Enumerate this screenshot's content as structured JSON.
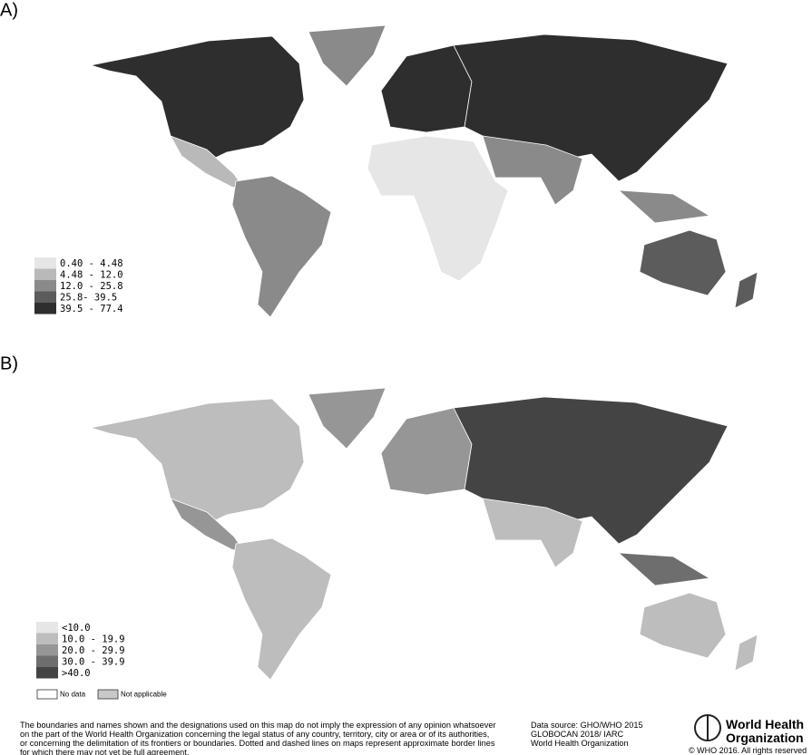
{
  "panels": [
    {
      "label": "A)",
      "legend": [
        {
          "label": "0.40 - 4.48",
          "color": "#e6e6e6"
        },
        {
          "label": "4.48 - 12.0",
          "color": "#b9b9b9"
        },
        {
          "label": "12.0 - 25.8",
          "color": "#8a8a8a"
        },
        {
          "label": "25.8- 39.5",
          "color": "#5c5c5c"
        },
        {
          "label": "39.5 - 77.4",
          "color": "#2e2e2e"
        }
      ]
    },
    {
      "label": "B)",
      "legend": [
        {
          "label": "<10.0",
          "color": "#e6e6e6"
        },
        {
          "label": "10.0 - 19.9",
          "color": "#bdbdbd"
        },
        {
          "label": "20.0 - 29.9",
          "color": "#969696"
        },
        {
          "label": "30.0 - 39.9",
          "color": "#6e6e6e"
        },
        {
          "label": ">40.0",
          "color": "#444444"
        }
      ],
      "extra_legend": [
        {
          "label": "No data",
          "color": "#ffffff"
        },
        {
          "label": "Not applicable",
          "color": "#c8c8c8"
        }
      ]
    }
  ],
  "footer": {
    "disclaimer": [
      "The boundaries and names shown and the designations used on this map do not imply the expression of any opinion whatsoever",
      "on the part of the World Health Organization concerning the legal status of any country, territory, city or area or of its authorities,",
      "or concerning the delimitation of its frontiers or boundaries. Dotted and dashed lines on maps represent approximate border lines",
      "for which there may not yet be full agreement."
    ],
    "source": [
      "Data source: GHO/WHO 2015",
      "GLOBOCAN 2018/ IARC",
      "World Health Organization"
    ],
    "logo": [
      "World Health",
      "Organization"
    ],
    "copyright": "© WHO 2016. All rights reserved"
  }
}
